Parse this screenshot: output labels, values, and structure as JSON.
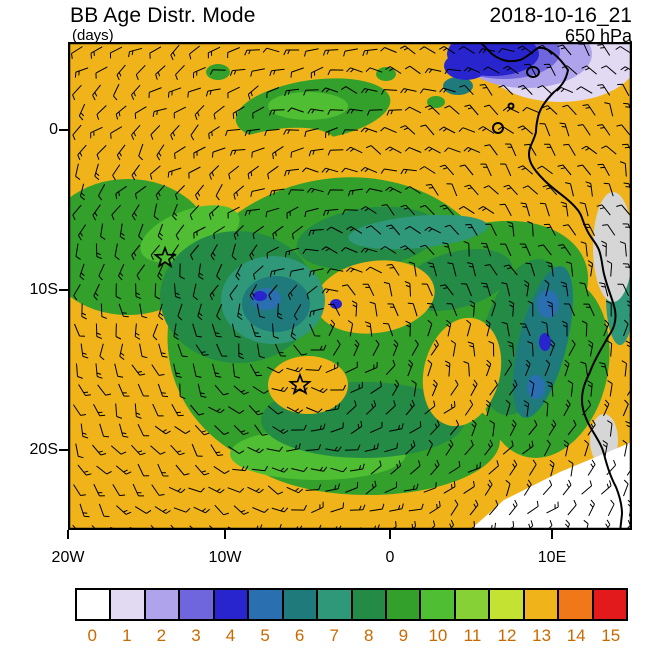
{
  "header": {
    "title": "BB Age Distr. Mode",
    "units": "(days)",
    "datetime": "2018-10-16_21",
    "level": "650 hPa"
  },
  "axes": {
    "y_ticks": [
      {
        "label": "0"
      },
      {
        "label": "10S"
      },
      {
        "label": "20S"
      }
    ],
    "x_ticks": [
      {
        "label": "20W"
      },
      {
        "label": "10W"
      },
      {
        "label": "0"
      },
      {
        "label": "10E"
      }
    ]
  },
  "colorbar": {
    "labels": [
      "0",
      "1",
      "2",
      "3",
      "4",
      "5",
      "6",
      "7",
      "8",
      "9",
      "10",
      "11",
      "12",
      "13",
      "14",
      "15"
    ],
    "colors": [
      "#FFFFFF",
      "#E2D9F3",
      "#AFA3EC",
      "#6F66DE",
      "#2824CE",
      "#2A6FB0",
      "#1F7A7C",
      "#2E9878",
      "#238B45",
      "#33A02C",
      "#4FBE32",
      "#86D136",
      "#C3E231",
      "#F0B41A",
      "#F07818",
      "#E31A1C"
    ],
    "label_color": "#C96A00"
  },
  "map_colors": {
    "land_nodata": "#D6D6D6",
    "coastline": "#000000"
  },
  "chart_data": {
    "type": "heatmap",
    "title": "BB Age Distr. Mode",
    "units": "days",
    "datetime": "2018-10-16_21",
    "pressure_level": "650 hPa",
    "x_axis": {
      "ticks": [
        "20W",
        "10W",
        "0",
        "10E"
      ],
      "lon_range_deg": [
        -20,
        15
      ]
    },
    "y_axis": {
      "ticks": [
        "0",
        "10S",
        "20S"
      ],
      "lat_range_deg": [
        5.5,
        -25
      ]
    },
    "color_levels_days": [
      0,
      1,
      2,
      3,
      4,
      5,
      6,
      7,
      8,
      9,
      10,
      11,
      12,
      13,
      14,
      15
    ],
    "overlays": [
      "wind-barbs",
      "african-coastline"
    ],
    "markers": [
      {
        "type": "star",
        "lon_deg": -14,
        "lat_deg": -8
      },
      {
        "type": "star",
        "lon_deg": -5.5,
        "lat_deg": -16
      }
    ],
    "field_summary": [
      {
        "region": "domain background",
        "mode_age_days": "13"
      },
      {
        "region": "main smoke plume spiral (approx 20W-8E, 2S-22S)",
        "mode_age_days": "8-10"
      },
      {
        "region": "plume core filaments and spiral center near 12W,10S",
        "mode_age_days": "6-7"
      },
      {
        "region": "aged pockets embedded in core and along Angola coast",
        "mode_age_days": "3-5"
      },
      {
        "region": "fresh smoke over Gulf of Guinea near 5N, 8-13E",
        "mode_age_days": "1-4"
      },
      {
        "region": "offshore Namibia, south-east corner",
        "mode_age_days": "0"
      },
      {
        "region": "clear holes near 1W,11S and 5.5W,16S",
        "mode_age_days": "13"
      }
    ]
  }
}
